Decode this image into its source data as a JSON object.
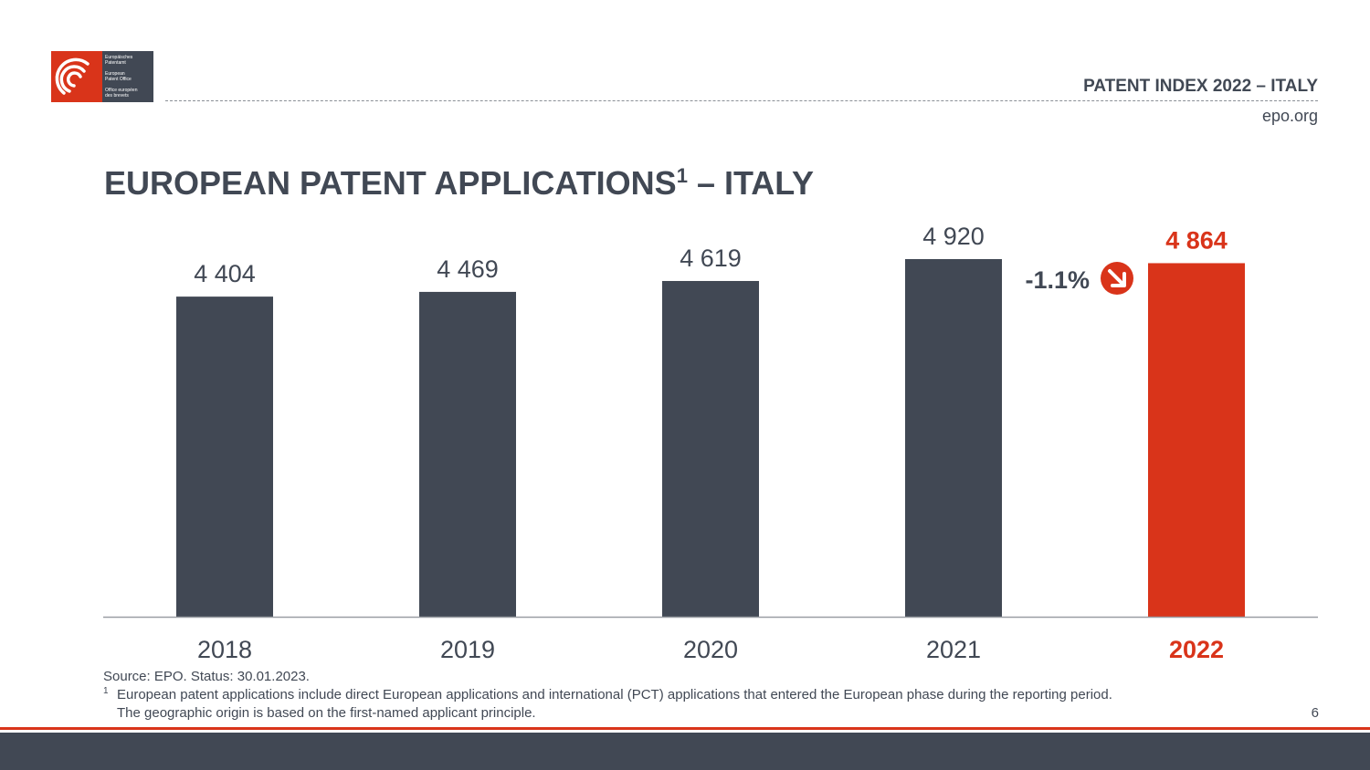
{
  "header": {
    "title": "PATENT INDEX 2022 – ITALY",
    "site": "epo.org",
    "logo_text": [
      "Europäisches Patentamt",
      "European Patent Office",
      "Office européen des brevets"
    ]
  },
  "slide": {
    "title": "EUROPEAN PATENT APPLICATIONS",
    "title_sup": "1",
    "title_suffix": " – ITALY",
    "page": "6"
  },
  "footnotes": {
    "source": "Source: EPO. Status: 30.01.2023.",
    "sup": "1",
    "line1": "European patent applications include direct European applications and international (PCT) applications that entered the European phase during the reporting period.",
    "line2": "The geographic origin is based on the first-named applicant principle."
  },
  "colors": {
    "bar": "#414854",
    "highlight": "#d9341a"
  },
  "chart_data": {
    "type": "bar",
    "title": "EUROPEAN PATENT APPLICATIONS – ITALY",
    "categories": [
      "2018",
      "2019",
      "2020",
      "2021",
      "2022"
    ],
    "values": [
      4404,
      4469,
      4619,
      4920,
      4864
    ],
    "labels": [
      "4 404",
      "4 469",
      "4 619",
      "4 920",
      "4 864"
    ],
    "highlight_index": 4,
    "annotation": {
      "text": "-1.1%",
      "icon": "arrow-down-right-icon"
    },
    "ylim": [
      0,
      4920
    ],
    "xlabel": "",
    "ylabel": "",
    "grid": false
  }
}
